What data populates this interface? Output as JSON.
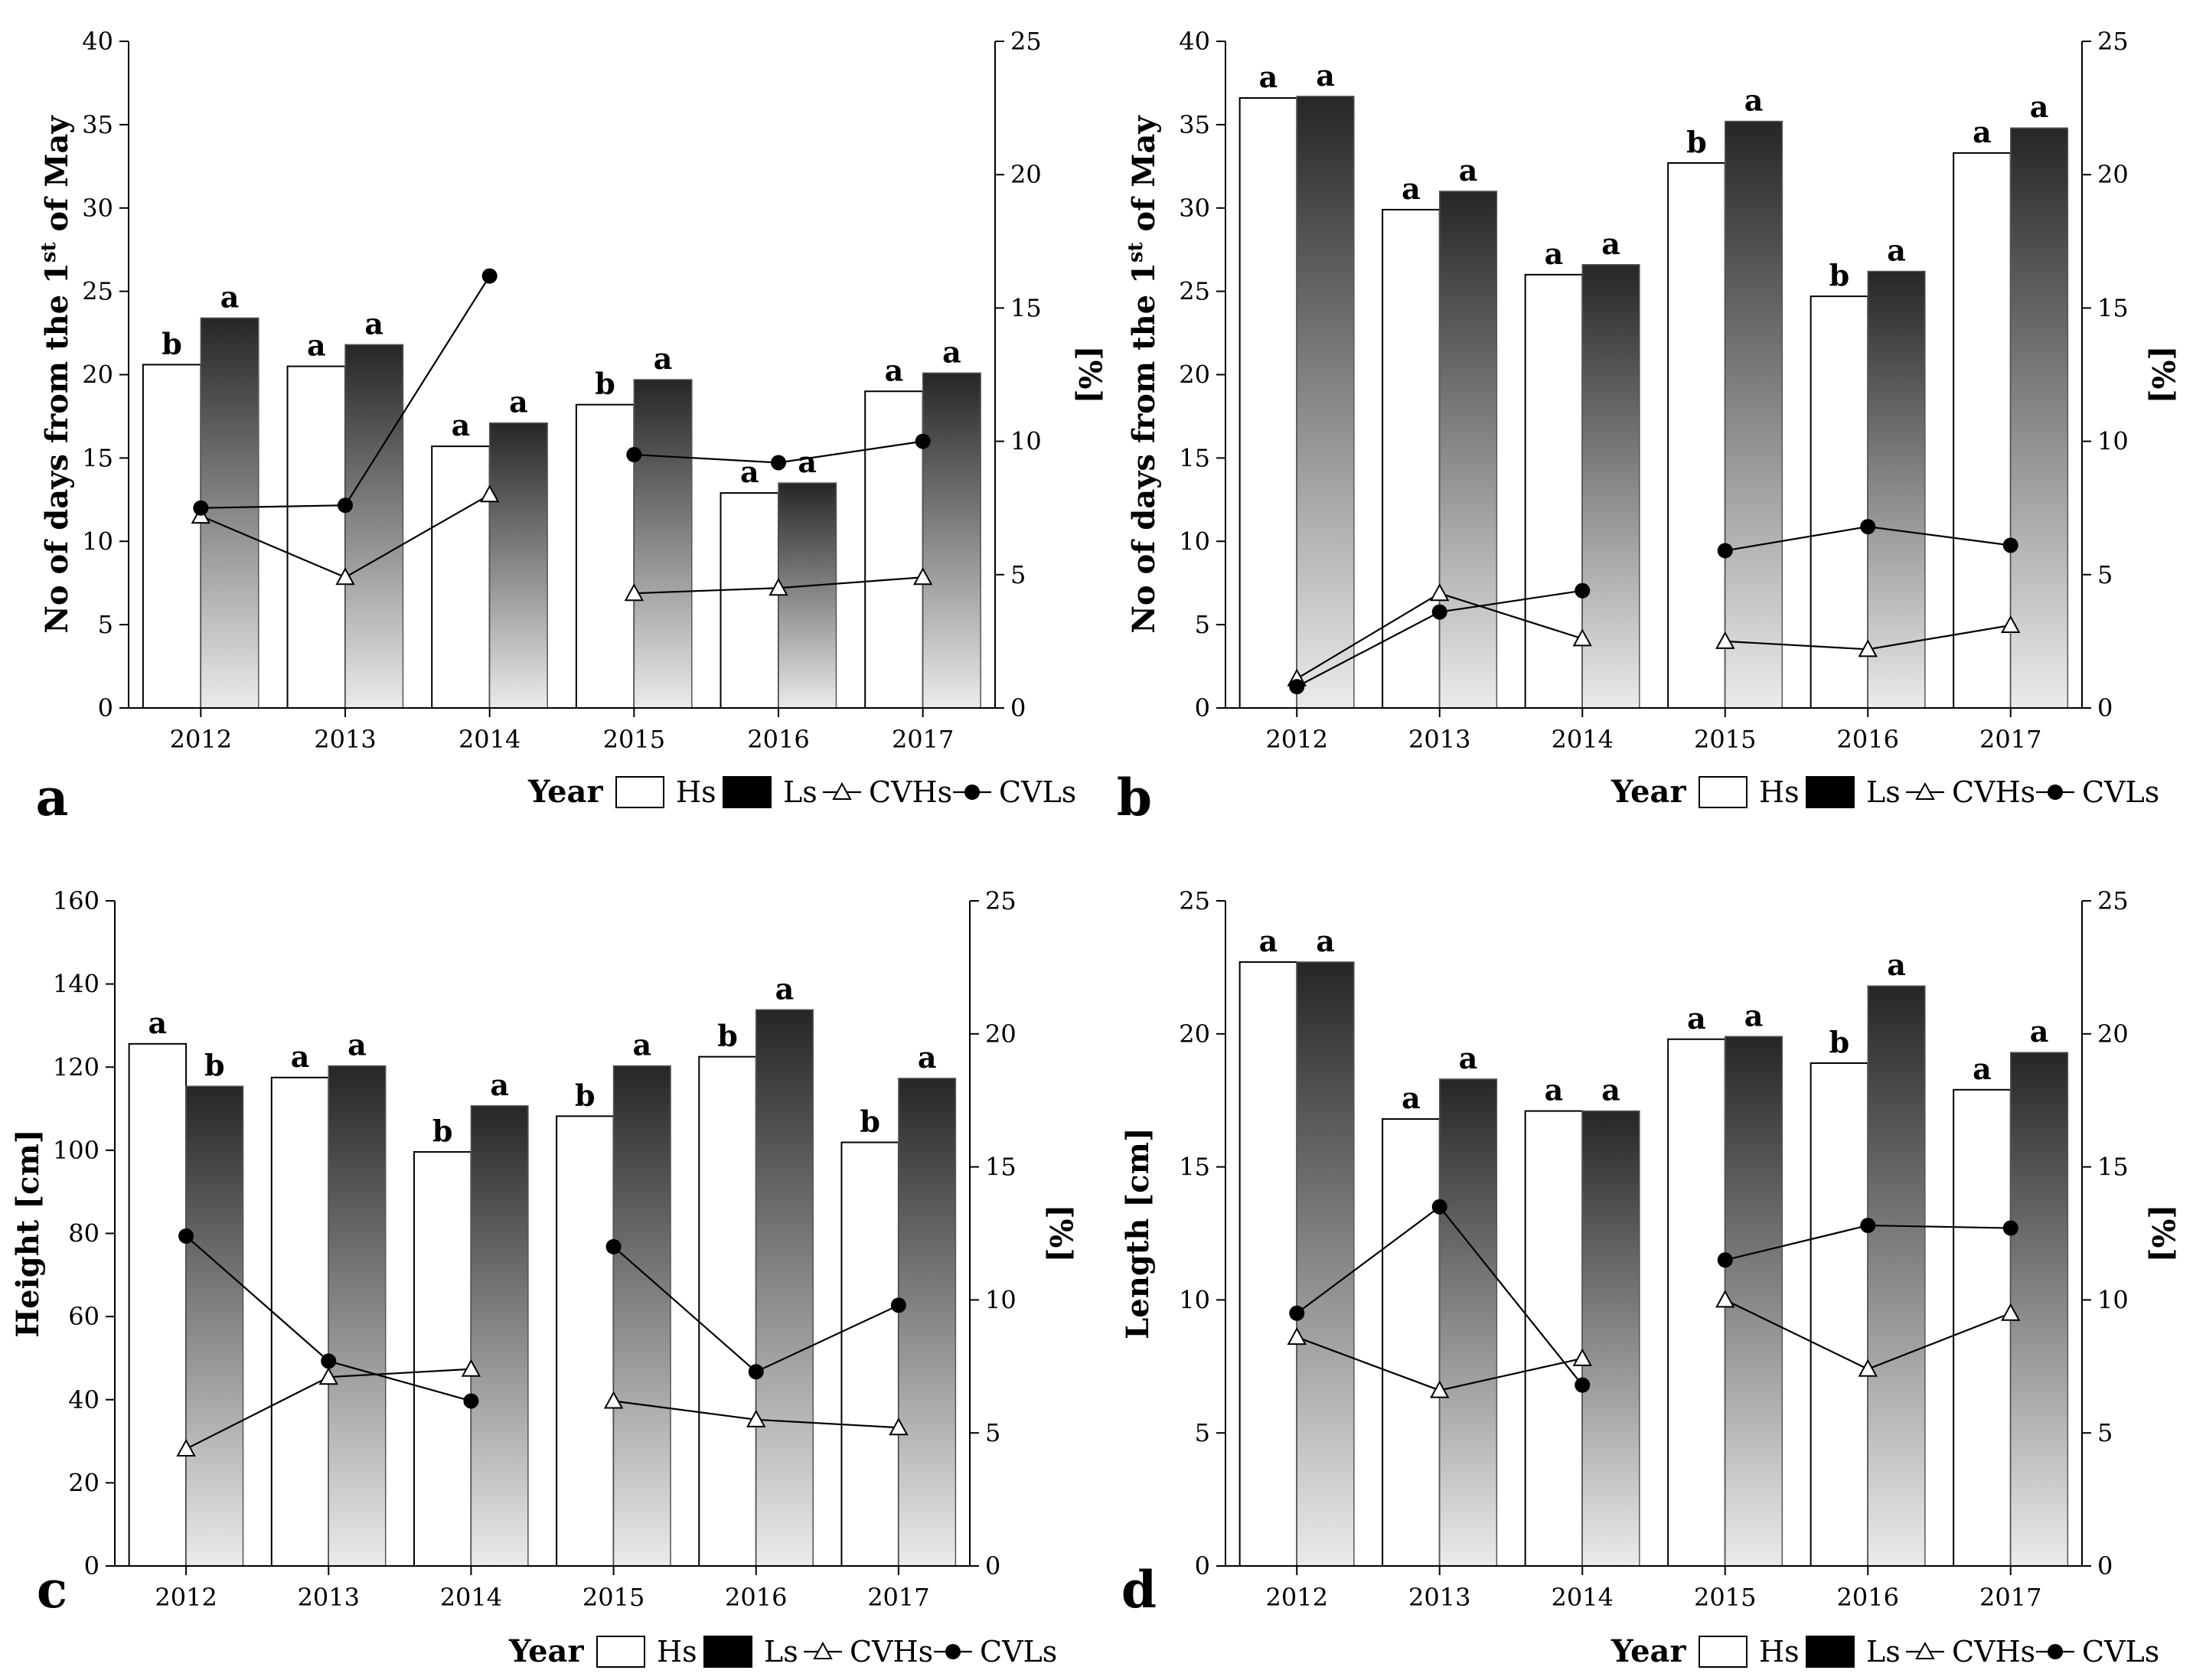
{
  "legend": {
    "year_label": "Year",
    "entries": [
      {
        "label": "Hs",
        "marker": "hollow-box"
      },
      {
        "label": "Ls",
        "marker": "filled-box"
      },
      {
        "label": "CVHs",
        "marker": "triangle-line"
      },
      {
        "label": "CVLs",
        "marker": "circle-line"
      }
    ]
  },
  "colors": {
    "hs_fill": "#ffffff",
    "ls_top": "#262626",
    "ls_bottom": "#ebebeb",
    "line": "#000000"
  },
  "chart_data": [
    {
      "type": "bar",
      "panel_label": "a",
      "categories": [
        "2012",
        "2013",
        "2014",
        "2015",
        "2016",
        "2017"
      ],
      "ylabel": "No of days from the 1st of May",
      "ylabel_parts": {
        "pre": "No of days from the 1",
        "sup": "st",
        "post": " of May"
      },
      "y2label": "[%]",
      "xlabel": "Year",
      "ylim": [
        0,
        40
      ],
      "yticks": [
        0,
        5,
        10,
        15,
        20,
        25,
        30,
        35,
        40
      ],
      "y2lim": [
        0,
        25
      ],
      "y2ticks": [
        0,
        5,
        10,
        15,
        20,
        25
      ],
      "series": [
        {
          "name": "Hs",
          "type": "bar",
          "values": [
            20.6,
            20.5,
            15.7,
            18.2,
            12.9,
            19.0
          ],
          "labels": [
            "b",
            "a",
            "a",
            "b",
            "a",
            "a"
          ]
        },
        {
          "name": "Ls",
          "type": "bar",
          "values": [
            23.4,
            21.8,
            17.1,
            19.7,
            13.5,
            20.1
          ],
          "labels": [
            "a",
            "a",
            "a",
            "a",
            "a",
            "a"
          ]
        },
        {
          "name": "CVHs",
          "type": "line",
          "axis": "right",
          "values": [
            7.2,
            4.9,
            8.0,
            4.3,
            4.5,
            4.9
          ]
        },
        {
          "name": "CVLs",
          "type": "line",
          "axis": "right",
          "values": [
            7.5,
            7.6,
            16.2,
            9.5,
            9.2,
            10.0
          ]
        }
      ]
    },
    {
      "type": "bar",
      "panel_label": "b",
      "categories": [
        "2012",
        "2013",
        "2014",
        "2015",
        "2016",
        "2017"
      ],
      "ylabel": "No of days from the 1st of May",
      "ylabel_parts": {
        "pre": "No of days from the 1",
        "sup": "st",
        "post": " of May"
      },
      "y2label": "[%]",
      "xlabel": "Year",
      "ylim": [
        0,
        40
      ],
      "yticks": [
        0,
        5,
        10,
        15,
        20,
        25,
        30,
        35,
        40
      ],
      "y2lim": [
        0,
        25
      ],
      "y2ticks": [
        0,
        5,
        10,
        15,
        20,
        25
      ],
      "series": [
        {
          "name": "Hs",
          "type": "bar",
          "values": [
            36.6,
            29.9,
            26.0,
            32.7,
            24.7,
            33.3
          ],
          "labels": [
            "a",
            "a",
            "a",
            "b",
            "b",
            "a"
          ]
        },
        {
          "name": "Ls",
          "type": "bar",
          "values": [
            36.7,
            31.0,
            26.6,
            35.2,
            26.2,
            34.8
          ],
          "labels": [
            "a",
            "a",
            "a",
            "a",
            "a",
            "a"
          ]
        },
        {
          "name": "CVHs",
          "type": "line",
          "axis": "right",
          "values": [
            1.1,
            4.3,
            2.6,
            2.5,
            2.2,
            3.1
          ]
        },
        {
          "name": "CVLs",
          "type": "line",
          "axis": "right",
          "values": [
            0.8,
            3.6,
            4.4,
            5.9,
            6.8,
            6.1
          ]
        }
      ]
    },
    {
      "type": "bar",
      "panel_label": "c",
      "categories": [
        "2012",
        "2013",
        "2014",
        "2015",
        "2016",
        "2017"
      ],
      "ylabel": "Height [cm]",
      "y2label": "[%]",
      "xlabel": "Year",
      "ylim": [
        0,
        160
      ],
      "yticks": [
        0,
        20,
        40,
        60,
        80,
        100,
        120,
        140,
        160
      ],
      "y2lim": [
        0,
        25
      ],
      "y2ticks": [
        0,
        5,
        10,
        15,
        20,
        25
      ],
      "series": [
        {
          "name": "Hs",
          "type": "bar",
          "values": [
            125.6,
            117.5,
            99.6,
            108.2,
            122.5,
            101.9
          ],
          "labels": [
            "a",
            "a",
            "b",
            "b",
            "b",
            "b"
          ]
        },
        {
          "name": "Ls",
          "type": "bar",
          "values": [
            115.4,
            120.3,
            110.7,
            120.3,
            133.8,
            117.3
          ],
          "labels": [
            "b",
            "a",
            "a",
            "a",
            "a",
            "a"
          ]
        },
        {
          "name": "CVHs",
          "type": "line",
          "axis": "right",
          "values": [
            4.4,
            7.1,
            7.4,
            6.2,
            5.5,
            5.2
          ]
        },
        {
          "name": "CVLs",
          "type": "line",
          "axis": "right",
          "values": [
            12.4,
            7.7,
            6.2,
            12.0,
            7.3,
            9.8
          ]
        }
      ]
    },
    {
      "type": "bar",
      "panel_label": "d",
      "categories": [
        "2012",
        "2013",
        "2014",
        "2015",
        "2016",
        "2017"
      ],
      "ylabel": "Length [cm]",
      "y2label": "[%]",
      "xlabel": "Year",
      "ylim": [
        0,
        25
      ],
      "yticks": [
        0,
        5,
        10,
        15,
        20,
        25
      ],
      "y2lim": [
        0,
        25
      ],
      "y2ticks": [
        0,
        5,
        10,
        15,
        20,
        25
      ],
      "series": [
        {
          "name": "Hs",
          "type": "bar",
          "values": [
            22.7,
            16.8,
            17.1,
            19.8,
            18.9,
            17.9
          ],
          "labels": [
            "a",
            "a",
            "a",
            "a",
            "b",
            "a"
          ]
        },
        {
          "name": "Ls",
          "type": "bar",
          "values": [
            22.7,
            18.3,
            17.1,
            19.9,
            21.8,
            19.3
          ],
          "labels": [
            "a",
            "a",
            "a",
            "a",
            "a",
            "a"
          ]
        },
        {
          "name": "CVHs",
          "type": "line",
          "axis": "right",
          "values": [
            8.6,
            6.6,
            7.8,
            10.0,
            7.4,
            9.5
          ]
        },
        {
          "name": "CVLs",
          "type": "line",
          "axis": "right",
          "values": [
            9.5,
            13.5,
            6.8,
            11.5,
            12.8,
            12.7
          ]
        }
      ]
    }
  ]
}
